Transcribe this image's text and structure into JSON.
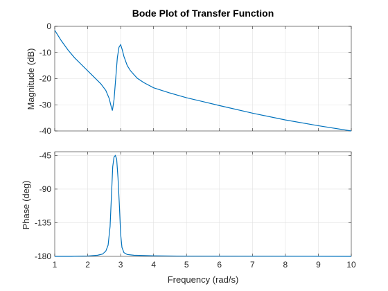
{
  "chart_data": [
    {
      "type": "line",
      "title": "Bode Plot of Transfer Function",
      "xlabel": "",
      "ylabel": "Magnitude (dB)",
      "xlim": [
        1,
        10
      ],
      "ylim": [
        -40,
        0
      ],
      "xticks": [
        1,
        2,
        3,
        4,
        5,
        6,
        7,
        8,
        9,
        10
      ],
      "yticks": [
        0,
        -10,
        -20,
        -30,
        -40
      ],
      "ytick_labels": [
        "0",
        "-10",
        "-20",
        "-30",
        "-40"
      ],
      "grid": true,
      "color": "#0072bd",
      "series": [
        {
          "x": [
            1.0,
            1.2,
            1.4,
            1.6,
            1.8,
            2.0,
            2.2,
            2.4,
            2.55,
            2.65,
            2.72,
            2.75,
            2.8,
            2.85,
            2.9,
            2.95,
            3.0,
            3.05,
            3.1,
            3.2,
            3.3,
            3.5,
            3.7,
            4.0,
            4.5,
            5.0,
            5.5,
            6.0,
            7.0,
            8.0,
            9.0,
            10.0
          ],
          "y": [
            -1.5,
            -5.5,
            -9.0,
            -12.0,
            -14.5,
            -17.0,
            -19.5,
            -22.0,
            -24.5,
            -27.5,
            -31.0,
            -32.2,
            -28.0,
            -20.0,
            -12.0,
            -8.0,
            -7.0,
            -9.0,
            -11.5,
            -15.0,
            -17.0,
            -19.8,
            -21.5,
            -23.5,
            -25.5,
            -27.3,
            -28.8,
            -30.3,
            -33.2,
            -35.8,
            -38.0,
            -40.0
          ]
        }
      ]
    },
    {
      "type": "line",
      "title": "",
      "xlabel": "Frequency (rad/s)",
      "ylabel": "Phase (deg)",
      "xlim": [
        1,
        10
      ],
      "ylim": [
        -180,
        -40
      ],
      "xticks": [
        1,
        2,
        3,
        4,
        5,
        6,
        7,
        8,
        9,
        10
      ],
      "xtick_labels": [
        "1",
        "2",
        "3",
        "4",
        "5",
        "6",
        "7",
        "8",
        "9",
        "10"
      ],
      "yticks": [
        -45,
        -90,
        -135,
        -180
      ],
      "ytick_labels": [
        "-45",
        "-90",
        "-135",
        "-180"
      ],
      "grid": true,
      "color": "#0072bd",
      "series": [
        {
          "x": [
            1.0,
            1.5,
            2.0,
            2.3,
            2.45,
            2.55,
            2.62,
            2.68,
            2.72,
            2.76,
            2.8,
            2.84,
            2.88,
            2.92,
            2.96,
            3.0,
            3.04,
            3.1,
            3.2,
            3.4,
            4.0,
            5.0,
            10.0
          ],
          "y": [
            -180,
            -180,
            -179.5,
            -178.5,
            -177,
            -173,
            -165,
            -140,
            -100,
            -60,
            -47,
            -45,
            -50,
            -75,
            -110,
            -150,
            -168,
            -175,
            -177.5,
            -178.5,
            -179.3,
            -179.7,
            -180
          ]
        }
      ]
    }
  ]
}
